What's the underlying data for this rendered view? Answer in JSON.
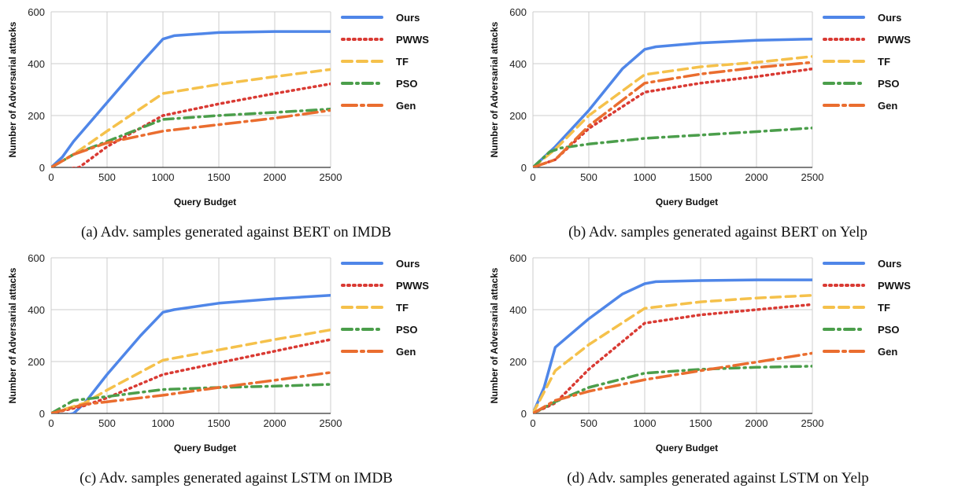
{
  "chart_data": [
    {
      "type": "line",
      "caption": "(a) Adv. samples generated against BERT on IMDB",
      "xlabel": "Query Budget",
      "ylabel": "Number of Adversarial attacks",
      "xlim": [
        0,
        2500
      ],
      "ylim": [
        0,
        600
      ],
      "xticks": [
        0,
        500,
        1000,
        1500,
        2000,
        2500
      ],
      "yticks": [
        0,
        200,
        400,
        600
      ],
      "grid": true,
      "legend": "right",
      "series": [
        {
          "name": "Ours",
          "color": "#4f86e8",
          "dash": "solid",
          "points": [
            [
              0,
              0
            ],
            [
              100,
              40
            ],
            [
              200,
              100
            ],
            [
              500,
              250
            ],
            [
              800,
              400
            ],
            [
              1000,
              495
            ],
            [
              1100,
              508
            ],
            [
              1500,
              520
            ],
            [
              2000,
              524
            ],
            [
              2500,
              524
            ]
          ]
        },
        {
          "name": "PWWS",
          "color": "#d93a33",
          "dash": "dot",
          "points": [
            [
              0,
              -20
            ],
            [
              150,
              -5
            ],
            [
              250,
              0
            ],
            [
              500,
              80
            ],
            [
              1000,
              200
            ],
            [
              1500,
              245
            ],
            [
              2000,
              285
            ],
            [
              2500,
              322
            ]
          ]
        },
        {
          "name": "TF",
          "color": "#f5c14b",
          "dash": "dash",
          "points": [
            [
              0,
              0
            ],
            [
              200,
              50
            ],
            [
              500,
              140
            ],
            [
              1000,
              285
            ],
            [
              1500,
              320
            ],
            [
              2000,
              350
            ],
            [
              2500,
              378
            ]
          ]
        },
        {
          "name": "PSO",
          "color": "#4b9e4b",
          "dash": "dashdot",
          "points": [
            [
              0,
              0
            ],
            [
              200,
              50
            ],
            [
              500,
              100
            ],
            [
              1000,
              185
            ],
            [
              1500,
              200
            ],
            [
              2000,
              212
            ],
            [
              2500,
              225
            ]
          ]
        },
        {
          "name": "Gen",
          "color": "#ea6d2f",
          "dash": "longdashdot",
          "points": [
            [
              0,
              0
            ],
            [
              200,
              50
            ],
            [
              500,
              95
            ],
            [
              1000,
              140
            ],
            [
              1500,
              165
            ],
            [
              2000,
              190
            ],
            [
              2500,
              220
            ]
          ]
        }
      ]
    },
    {
      "type": "line",
      "caption": "(b) Adv. samples generated against BERT on Yelp",
      "xlabel": "Query Budget",
      "ylabel": "Number of Adversarial attacks",
      "xlim": [
        0,
        2500
      ],
      "ylim": [
        0,
        600
      ],
      "xticks": [
        0,
        500,
        1000,
        1500,
        2000,
        2500
      ],
      "yticks": [
        0,
        200,
        400,
        600
      ],
      "grid": true,
      "legend": "right",
      "series": [
        {
          "name": "Ours",
          "color": "#4f86e8",
          "dash": "solid",
          "points": [
            [
              0,
              0
            ],
            [
              200,
              80
            ],
            [
              500,
              220
            ],
            [
              800,
              380
            ],
            [
              1000,
              455
            ],
            [
              1100,
              465
            ],
            [
              1500,
              480
            ],
            [
              2000,
              490
            ],
            [
              2500,
              495
            ]
          ]
        },
        {
          "name": "PWWS",
          "color": "#d93a33",
          "dash": "dot",
          "points": [
            [
              0,
              0
            ],
            [
              200,
              30
            ],
            [
              500,
              150
            ],
            [
              1000,
              290
            ],
            [
              1500,
              325
            ],
            [
              2000,
              350
            ],
            [
              2500,
              380
            ]
          ]
        },
        {
          "name": "TF",
          "color": "#f5c14b",
          "dash": "dash",
          "points": [
            [
              0,
              0
            ],
            [
              200,
              70
            ],
            [
              500,
              200
            ],
            [
              1000,
              358
            ],
            [
              1500,
              388
            ],
            [
              2000,
              405
            ],
            [
              2500,
              428
            ]
          ]
        },
        {
          "name": "PSO",
          "color": "#4b9e4b",
          "dash": "dashdot",
          "points": [
            [
              0,
              0
            ],
            [
              150,
              60
            ],
            [
              250,
              75
            ],
            [
              500,
              90
            ],
            [
              1000,
              112
            ],
            [
              1500,
              125
            ],
            [
              2000,
              138
            ],
            [
              2500,
              152
            ]
          ]
        },
        {
          "name": "Gen",
          "color": "#ea6d2f",
          "dash": "longdashdot",
          "points": [
            [
              0,
              0
            ],
            [
              200,
              30
            ],
            [
              500,
              160
            ],
            [
              1000,
              325
            ],
            [
              1500,
              360
            ],
            [
              2000,
              385
            ],
            [
              2500,
              405
            ]
          ]
        }
      ]
    },
    {
      "type": "line",
      "caption": "(c) Adv. samples generated against LSTM on IMDB",
      "xlabel": "Query Budget",
      "ylabel": "Number of Adversarial attacks",
      "xlim": [
        0,
        2500
      ],
      "ylim": [
        0,
        600
      ],
      "xticks": [
        0,
        500,
        1000,
        1500,
        2000,
        2500
      ],
      "yticks": [
        0,
        200,
        400,
        600
      ],
      "grid": true,
      "legend": "right",
      "series": [
        {
          "name": "Ours",
          "color": "#4f86e8",
          "dash": "solid",
          "points": [
            [
              0,
              -20
            ],
            [
              200,
              0
            ],
            [
              300,
              40
            ],
            [
              500,
              150
            ],
            [
              800,
              300
            ],
            [
              1000,
              390
            ],
            [
              1100,
              400
            ],
            [
              1500,
              425
            ],
            [
              2000,
              442
            ],
            [
              2500,
              455
            ]
          ]
        },
        {
          "name": "PWWS",
          "color": "#d93a33",
          "dash": "dot",
          "points": [
            [
              0,
              0
            ],
            [
              300,
              30
            ],
            [
              500,
              60
            ],
            [
              1000,
              150
            ],
            [
              1500,
              195
            ],
            [
              2000,
              240
            ],
            [
              2500,
              285
            ]
          ]
        },
        {
          "name": "TF",
          "color": "#f5c14b",
          "dash": "dash",
          "points": [
            [
              0,
              0
            ],
            [
              300,
              40
            ],
            [
              500,
              90
            ],
            [
              1000,
              205
            ],
            [
              1500,
              245
            ],
            [
              2000,
              285
            ],
            [
              2500,
              322
            ]
          ]
        },
        {
          "name": "PSO",
          "color": "#4b9e4b",
          "dash": "dashdot",
          "points": [
            [
              0,
              0
            ],
            [
              200,
              50
            ],
            [
              500,
              65
            ],
            [
              1000,
              92
            ],
            [
              1500,
              100
            ],
            [
              2000,
              105
            ],
            [
              2500,
              112
            ]
          ]
        },
        {
          "name": "Gen",
          "color": "#ea6d2f",
          "dash": "longdashdot",
          "points": [
            [
              0,
              0
            ],
            [
              300,
              35
            ],
            [
              500,
              45
            ],
            [
              1000,
              70
            ],
            [
              1500,
              100
            ],
            [
              2000,
              128
            ],
            [
              2500,
              158
            ]
          ]
        }
      ]
    },
    {
      "type": "line",
      "caption": "(d) Adv. samples generated against LSTM on Yelp",
      "xlabel": "Query Budget",
      "ylabel": "Number of Adversarial attacks",
      "xlim": [
        0,
        2500
      ],
      "ylim": [
        0,
        600
      ],
      "xticks": [
        0,
        500,
        1000,
        1500,
        2000,
        2500
      ],
      "yticks": [
        0,
        200,
        400,
        600
      ],
      "grid": true,
      "legend": "right",
      "series": [
        {
          "name": "Ours",
          "color": "#4f86e8",
          "dash": "solid",
          "points": [
            [
              0,
              0
            ],
            [
              100,
              100
            ],
            [
              200,
              255
            ],
            [
              500,
              365
            ],
            [
              800,
              460
            ],
            [
              1000,
              500
            ],
            [
              1100,
              508
            ],
            [
              1500,
              512
            ],
            [
              2000,
              515
            ],
            [
              2500,
              515
            ]
          ]
        },
        {
          "name": "PWWS",
          "color": "#d93a33",
          "dash": "dot",
          "points": [
            [
              0,
              0
            ],
            [
              200,
              40
            ],
            [
              500,
              170
            ],
            [
              1000,
              348
            ],
            [
              1500,
              380
            ],
            [
              2000,
              400
            ],
            [
              2500,
              420
            ]
          ]
        },
        {
          "name": "TF",
          "color": "#f5c14b",
          "dash": "dash",
          "points": [
            [
              0,
              0
            ],
            [
              200,
              165
            ],
            [
              500,
              265
            ],
            [
              1000,
              405
            ],
            [
              1500,
              430
            ],
            [
              2000,
              445
            ],
            [
              2500,
              455
            ]
          ]
        },
        {
          "name": "PSO",
          "color": "#4b9e4b",
          "dash": "dashdot",
          "points": [
            [
              0,
              0
            ],
            [
              200,
              45
            ],
            [
              500,
              100
            ],
            [
              1000,
              155
            ],
            [
              1500,
              170
            ],
            [
              2000,
              178
            ],
            [
              2500,
              182
            ]
          ]
        },
        {
          "name": "Gen",
          "color": "#ea6d2f",
          "dash": "longdashdot",
          "points": [
            [
              0,
              0
            ],
            [
              200,
              50
            ],
            [
              500,
              85
            ],
            [
              1000,
              130
            ],
            [
              1500,
              165
            ],
            [
              2000,
              198
            ],
            [
              2500,
              232
            ]
          ]
        }
      ]
    }
  ]
}
